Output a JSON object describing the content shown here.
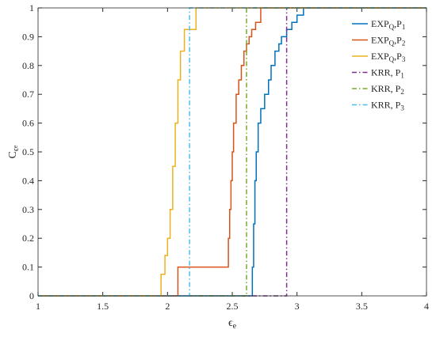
{
  "chart_data": {
    "type": "step",
    "xlabel": [
      "ϵ",
      "e"
    ],
    "ylabel": [
      "C",
      "ϵ",
      "e"
    ],
    "xlim": [
      1,
      4
    ],
    "xticks": [
      1,
      1.5,
      2,
      2.5,
      3,
      3.5,
      4
    ],
    "ylim": [
      0,
      1
    ],
    "yticks": [
      0,
      0.1,
      0.2,
      0.3,
      0.4,
      0.5,
      0.6,
      0.7,
      0.8,
      0.9,
      1
    ],
    "legend": "upper right",
    "series": [
      {
        "name": [
          "EXP",
          "Q",
          ",P",
          "1"
        ],
        "color": "#0072bd",
        "dash": "solid",
        "x": [
          1,
          2.655,
          2.665,
          2.675,
          2.685,
          2.7,
          2.72,
          2.75,
          2.78,
          2.8,
          2.83,
          2.86,
          2.88,
          2.92,
          2.96,
          3.0,
          3.05,
          4
        ],
        "values": [
          0,
          0.1,
          0.25,
          0.4,
          0.5,
          0.6,
          0.65,
          0.7,
          0.75,
          0.8,
          0.85,
          0.875,
          0.9,
          0.925,
          0.95,
          0.975,
          1,
          1
        ]
      },
      {
        "name": [
          "EXP",
          "Q",
          ",P",
          "2"
        ],
        "color": "#d95319",
        "dash": "solid",
        "x": [
          1,
          2.08,
          2.47,
          2.48,
          2.49,
          2.5,
          2.51,
          2.53,
          2.55,
          2.57,
          2.59,
          2.61,
          2.63,
          2.65,
          2.68,
          2.72,
          4
        ],
        "values": [
          0,
          0.1,
          0.2,
          0.3,
          0.4,
          0.5,
          0.6,
          0.7,
          0.75,
          0.8,
          0.85,
          0.875,
          0.9,
          0.925,
          0.95,
          1,
          1
        ]
      },
      {
        "name": [
          "EXP",
          "Q",
          ",P",
          "3"
        ],
        "color": "#edb120",
        "dash": "solid",
        "x": [
          1,
          1.95,
          1.98,
          2.0,
          2.02,
          2.04,
          2.06,
          2.08,
          2.1,
          2.13,
          2.22,
          4
        ],
        "values": [
          0,
          0.075,
          0.14,
          0.2,
          0.3,
          0.45,
          0.6,
          0.75,
          0.85,
          0.925,
          1,
          1
        ]
      },
      {
        "name": [
          "KRR,  P",
          "1"
        ],
        "color": "#7e2f8e",
        "dash": "dashdot",
        "x": [
          1,
          2.92,
          4
        ],
        "values": [
          0,
          1,
          1
        ]
      },
      {
        "name": [
          "KRR,  P",
          "2"
        ],
        "color": "#77ac30",
        "dash": "dashdot",
        "x": [
          1,
          2.61,
          4
        ],
        "values": [
          0,
          1,
          1
        ]
      },
      {
        "name": [
          "KRR,  P",
          "3"
        ],
        "color": "#4dbeee",
        "dash": "dashdot",
        "x": [
          1,
          2.17,
          4
        ],
        "values": [
          0,
          1,
          1
        ]
      }
    ]
  }
}
